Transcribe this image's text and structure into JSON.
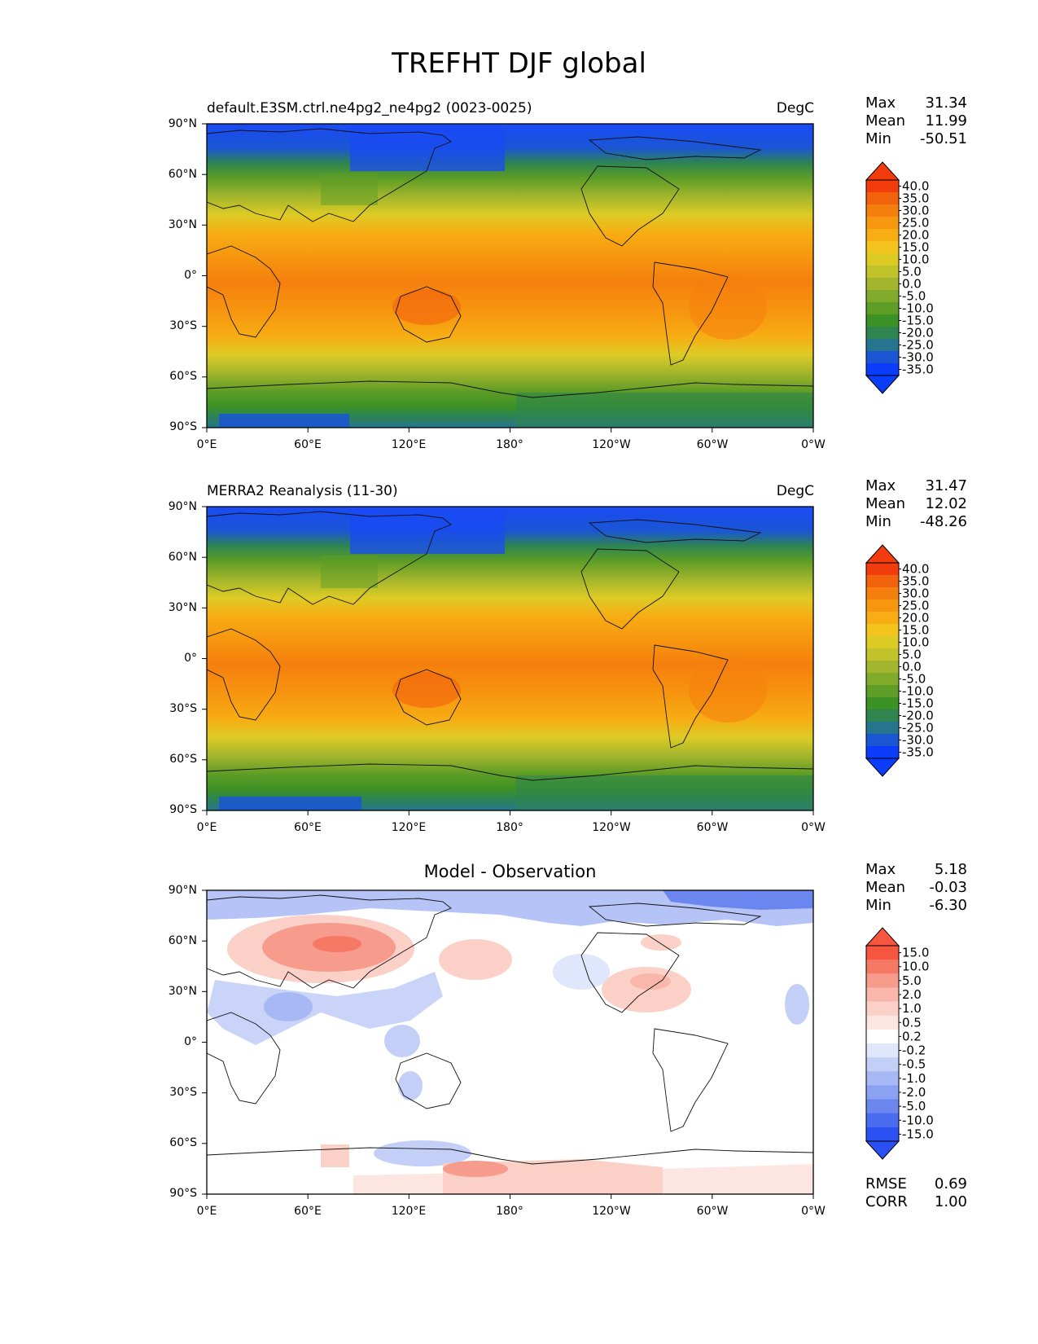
{
  "figure_title": "TREFHT DJF global",
  "chart_data": [
    {
      "type": "map",
      "title": "default.E3SM.ctrl.ne4pg2_ne4pg2 (0023-0025)",
      "units": "DegC",
      "stats": {
        "max_label": "Max",
        "max": "31.34",
        "mean_label": "Mean",
        "mean": "11.99",
        "min_label": "Min",
        "min": "-50.51"
      },
      "colorbar_levels": [
        "40.0",
        "35.0",
        "30.0",
        "25.0",
        "20.0",
        "15.0",
        "10.0",
        "5.0",
        "0.0",
        "-5.0",
        "-10.0",
        "-15.0",
        "-20.0",
        "-25.0",
        "-30.0",
        "-35.0"
      ],
      "colorbar_colors": [
        "#f23c0d",
        "#f3620d",
        "#f57f0e",
        "#f7960f",
        "#f7ad13",
        "#f2c41d",
        "#ddcb25",
        "#c2c22a",
        "#a3b52c",
        "#80aa2a",
        "#5e9d26",
        "#3c9124",
        "#2e8550",
        "#25758e",
        "#1a56d4",
        "#0a3cfa"
      ],
      "x_ticks": [
        "0°E",
        "60°E",
        "120°E",
        "180°",
        "120°W",
        "60°W",
        "0°W"
      ],
      "y_ticks": [
        "90°N",
        "60°N",
        "30°N",
        "0°",
        "30°S",
        "60°S",
        "90°S"
      ]
    },
    {
      "type": "map",
      "title": "MERRA2 Reanalysis (11-30)",
      "units": "DegC",
      "stats": {
        "max_label": "Max",
        "max": "31.47",
        "mean_label": "Mean",
        "mean": "12.02",
        "min_label": "Min",
        "min": "-48.26"
      },
      "colorbar_levels": [
        "40.0",
        "35.0",
        "30.0",
        "25.0",
        "20.0",
        "15.0",
        "10.0",
        "5.0",
        "0.0",
        "-5.0",
        "-10.0",
        "-15.0",
        "-20.0",
        "-25.0",
        "-30.0",
        "-35.0"
      ],
      "colorbar_colors": [
        "#f23c0d",
        "#f3620d",
        "#f57f0e",
        "#f7960f",
        "#f7ad13",
        "#f2c41d",
        "#ddcb25",
        "#c2c22a",
        "#a3b52c",
        "#80aa2a",
        "#5e9d26",
        "#3c9124",
        "#2e8550",
        "#25758e",
        "#1a56d4",
        "#0a3cfa"
      ],
      "x_ticks": [
        "0°E",
        "60°E",
        "120°E",
        "180°",
        "120°W",
        "60°W",
        "0°W"
      ],
      "y_ticks": [
        "90°N",
        "60°N",
        "30°N",
        "0°",
        "30°S",
        "60°S",
        "90°S"
      ]
    },
    {
      "type": "map",
      "title": "Model - Observation",
      "units": "",
      "stats": {
        "max_label": "Max",
        "max": "5.18",
        "mean_label": "Mean",
        "mean": "-0.03",
        "min_label": "Min",
        "min": "-6.30"
      },
      "extra_stats": {
        "rmse_label": "RMSE",
        "rmse": "0.69",
        "corr_label": "CORR",
        "corr": "1.00"
      },
      "colorbar_levels": [
        "15.0",
        "10.0",
        "5.0",
        "2.0",
        "1.0",
        "0.5",
        "0.2",
        "-0.2",
        "-0.5",
        "-1.0",
        "-2.0",
        "-5.0",
        "-10.0",
        "-15.0"
      ],
      "colorbar_colors": [
        "#f6553f",
        "#f67966",
        "#f79b8c",
        "#f9b7ab",
        "#fbd0c7",
        "#fde6e1",
        "#ffffff",
        "#e0e6fb",
        "#c4cff8",
        "#a8b8f5",
        "#8ba1f2",
        "#6b86ef",
        "#4a6cf0",
        "#2a4ff3"
      ],
      "x_ticks": [
        "0°E",
        "60°E",
        "120°E",
        "180°",
        "120°W",
        "60°W",
        "0°W"
      ],
      "y_ticks": [
        "90°N",
        "60°N",
        "30°N",
        "0°",
        "30°S",
        "60°S",
        "90°S"
      ]
    }
  ]
}
